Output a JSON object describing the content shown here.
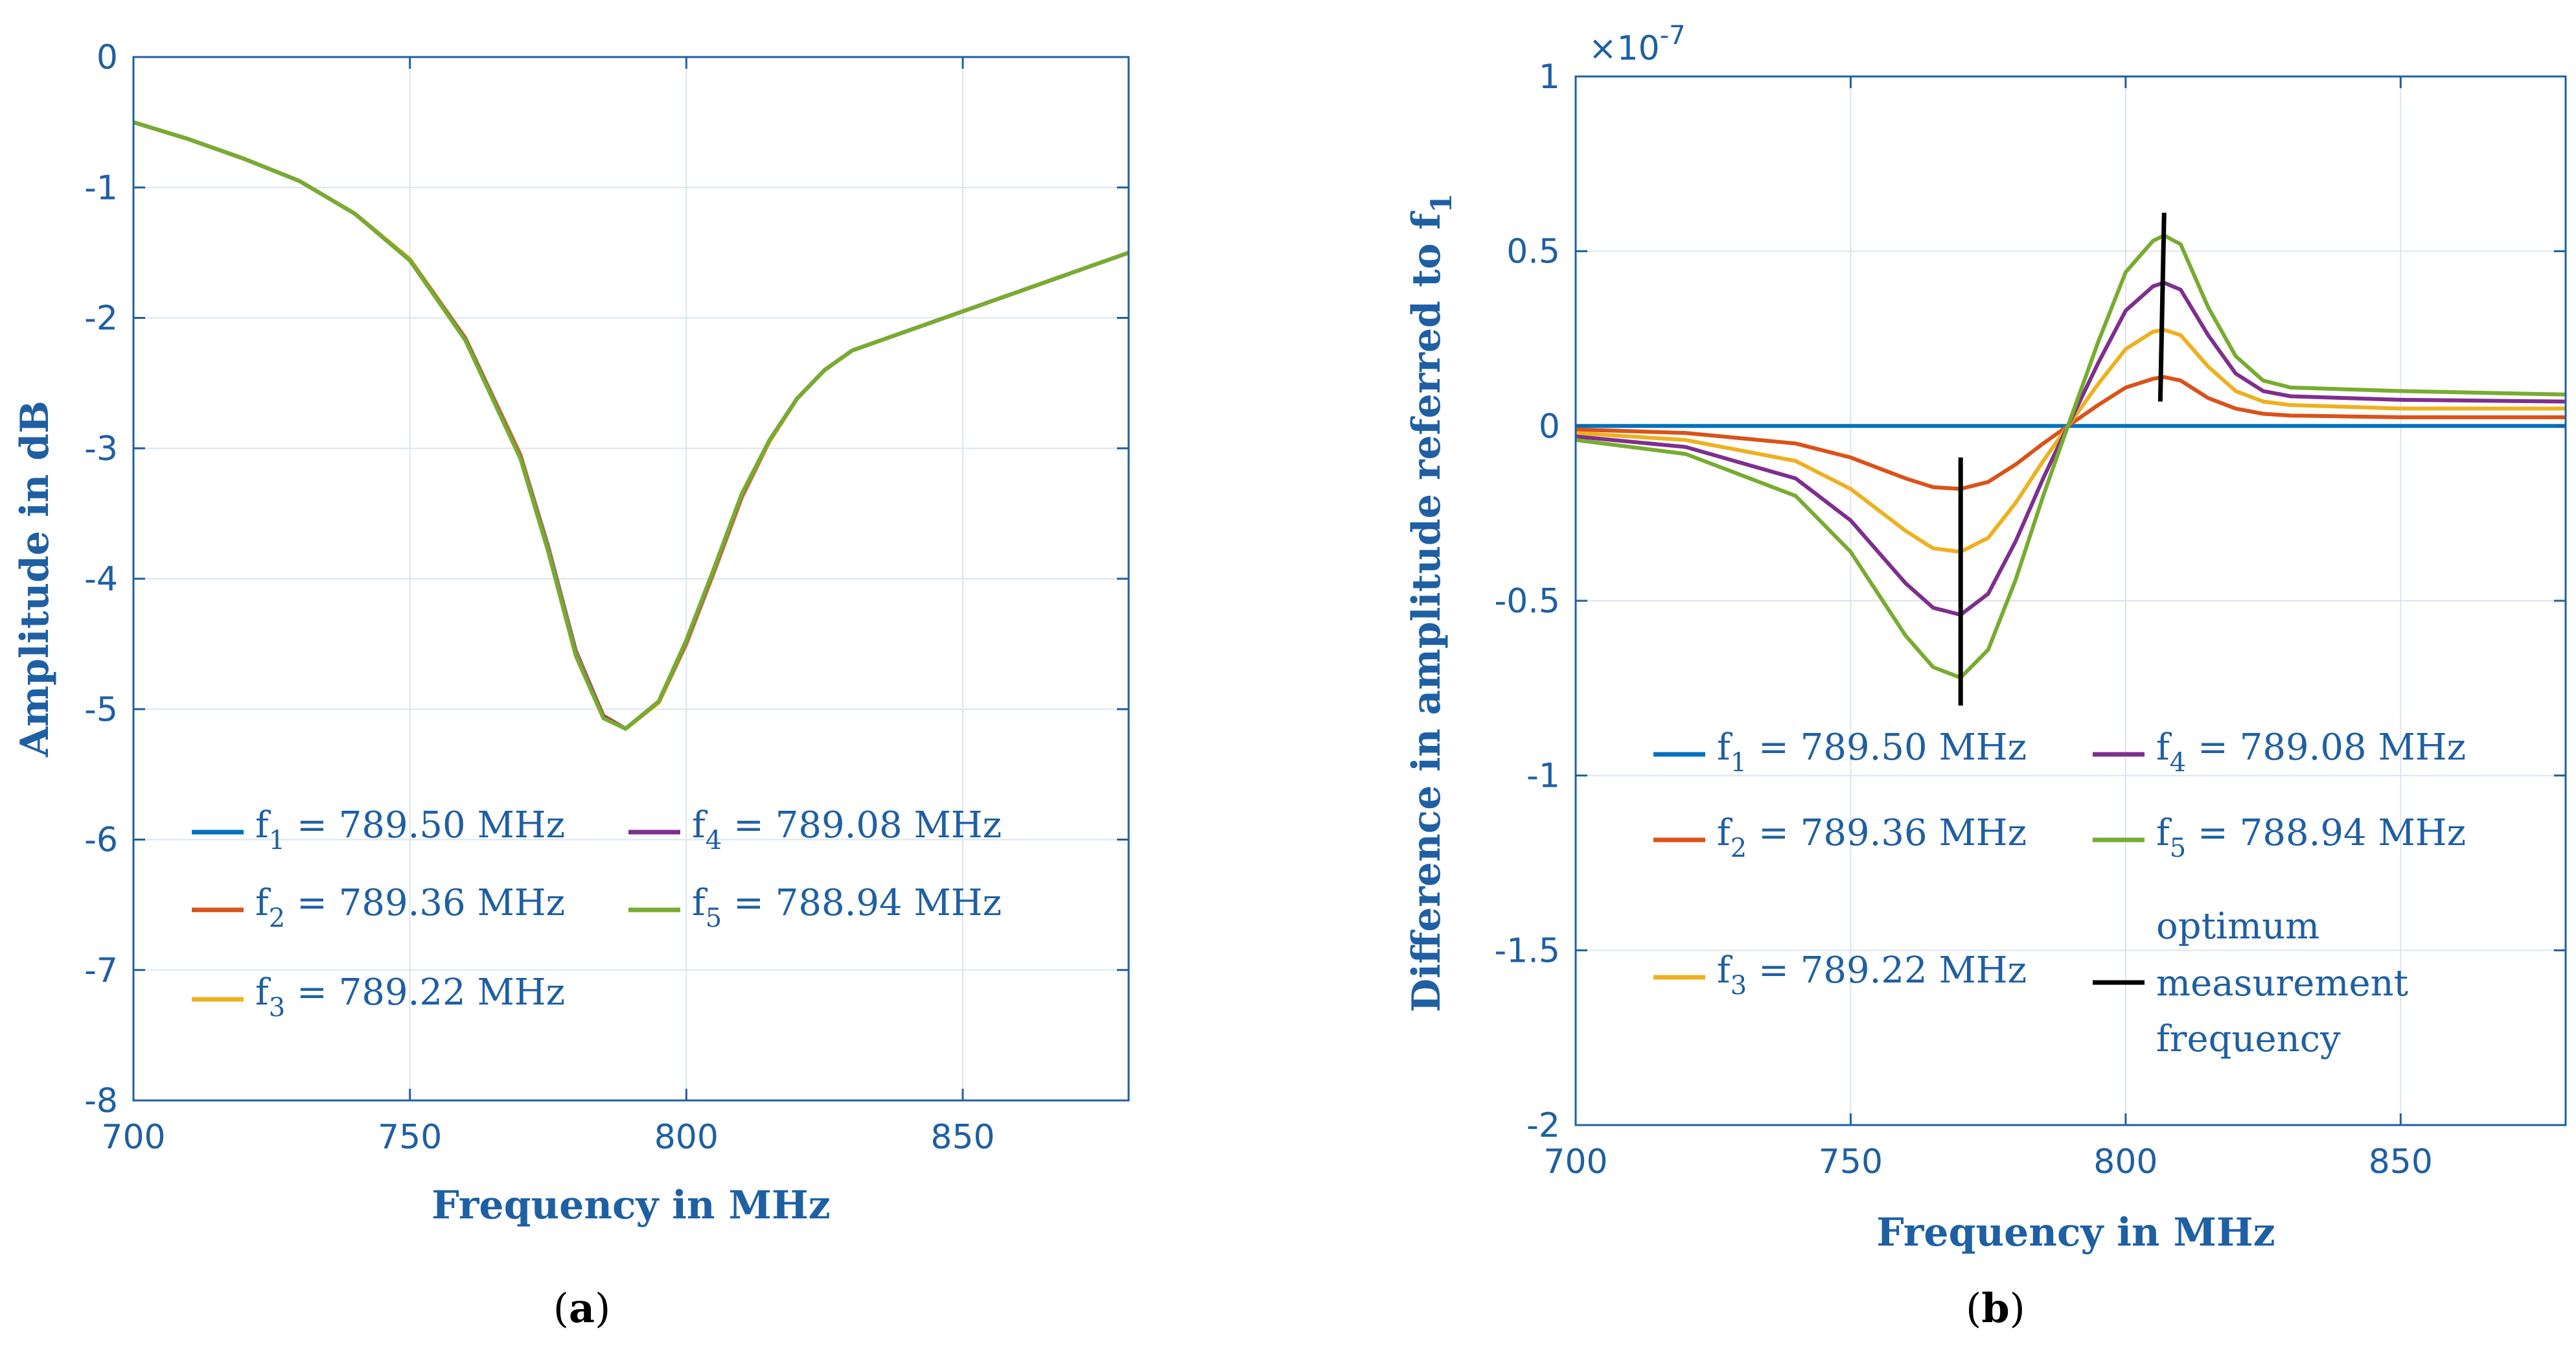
{
  "chart_data": [
    {
      "id": "a",
      "type": "line",
      "panel_label": "a",
      "xlabel": "Frequency in MHz",
      "ylabel": "Amplitude in dB",
      "xlim": [
        700,
        880
      ],
      "ylim": [
        -8,
        0
      ],
      "xticks": [
        "700",
        "750",
        "800",
        "850"
      ],
      "yticks": [
        "0",
        "-1",
        "-2",
        "-3",
        "-4",
        "-5",
        "-6",
        "-7",
        "-8"
      ],
      "grid": true,
      "legend_position": "bottom-center",
      "x": [
        700,
        710,
        720,
        730,
        740,
        750,
        760,
        770,
        775,
        780,
        785,
        789,
        795,
        800,
        805,
        810,
        815,
        820,
        825,
        830,
        840,
        850,
        860,
        870,
        880
      ],
      "series": [
        {
          "name": "f1",
          "label_base": "f",
          "label_sub": "1",
          "label_rest": " = 789.50 MHz",
          "color": "#0072BD",
          "values": [
            -0.5,
            -0.63,
            -0.78,
            -0.95,
            -1.2,
            -1.55,
            -2.15,
            -3.05,
            -3.75,
            -4.55,
            -5.05,
            -5.15,
            -4.95,
            -4.5,
            -3.95,
            -3.38,
            -2.95,
            -2.62,
            -2.4,
            -2.25,
            -2.1,
            -1.95,
            -1.8,
            -1.65,
            -1.5
          ]
        },
        {
          "name": "f2",
          "label_base": "f",
          "label_sub": "2",
          "label_rest": " = 789.36 MHz",
          "color": "#D95319",
          "values": [
            -0.5,
            -0.63,
            -0.78,
            -0.95,
            -1.2,
            -1.55,
            -2.15,
            -3.05,
            -3.76,
            -4.56,
            -5.05,
            -5.15,
            -4.95,
            -4.5,
            -3.95,
            -3.38,
            -2.95,
            -2.62,
            -2.4,
            -2.25,
            -2.1,
            -1.95,
            -1.8,
            -1.65,
            -1.5
          ]
        },
        {
          "name": "f3",
          "label_base": "f",
          "label_sub": "3",
          "label_rest": " = 789.22 MHz",
          "color": "#EDB120",
          "values": [
            -0.5,
            -0.63,
            -0.78,
            -0.95,
            -1.2,
            -1.55,
            -2.15,
            -3.06,
            -3.77,
            -4.57,
            -5.06,
            -5.15,
            -4.95,
            -4.49,
            -3.94,
            -3.37,
            -2.95,
            -2.62,
            -2.4,
            -2.25,
            -2.1,
            -1.95,
            -1.8,
            -1.65,
            -1.5
          ]
        },
        {
          "name": "f4",
          "label_base": "f",
          "label_sub": "4",
          "label_rest": " = 789.08 MHz",
          "color": "#7E2F8E",
          "values": [
            -0.5,
            -0.63,
            -0.78,
            -0.95,
            -1.2,
            -1.56,
            -2.16,
            -3.07,
            -3.78,
            -4.58,
            -5.06,
            -5.15,
            -4.94,
            -4.48,
            -3.93,
            -3.36,
            -2.94,
            -2.62,
            -2.4,
            -2.25,
            -2.1,
            -1.95,
            -1.8,
            -1.65,
            -1.5
          ]
        },
        {
          "name": "f5",
          "label_base": "f",
          "label_sub": "5",
          "label_rest": " = 788.94 MHz",
          "color": "#77AC30",
          "values": [
            -0.5,
            -0.63,
            -0.78,
            -0.95,
            -1.2,
            -1.56,
            -2.17,
            -3.08,
            -3.79,
            -4.59,
            -5.07,
            -5.15,
            -4.94,
            -4.47,
            -3.92,
            -3.35,
            -2.94,
            -2.62,
            -2.4,
            -2.25,
            -2.1,
            -1.95,
            -1.8,
            -1.65,
            -1.5
          ]
        }
      ]
    },
    {
      "id": "b",
      "type": "line",
      "panel_label": "b",
      "xlabel": "Frequency in MHz",
      "ylabel_main": "Difference in amplitude referred to f",
      "ylabel_sub": "1",
      "y_exponent_base": "×10",
      "y_exponent_power": "-7",
      "xlim": [
        700,
        880
      ],
      "ylim": [
        -2,
        1
      ],
      "xticks": [
        "700",
        "750",
        "800",
        "850"
      ],
      "yticks": [
        "1",
        "0.5",
        "0",
        "-0.5",
        "-1",
        "-1.5",
        "-2"
      ],
      "grid": true,
      "legend_position": "lower-center",
      "x": [
        700,
        720,
        740,
        750,
        760,
        765,
        770,
        775,
        780,
        785,
        789.5,
        795,
        800,
        805,
        807,
        810,
        815,
        820,
        825,
        830,
        850,
        880
      ],
      "series": [
        {
          "name": "f1",
          "label_base": "f",
          "label_sub": "1",
          "label_rest": " = 789.50 MHz",
          "color": "#0072BD",
          "values": [
            0,
            0,
            0,
            0,
            0,
            0,
            0,
            0,
            0,
            0,
            0,
            0,
            0,
            0,
            0,
            0,
            0,
            0,
            0,
            0,
            0,
            0
          ]
        },
        {
          "name": "f2",
          "label_base": "f",
          "label_sub": "2",
          "label_rest": " = 789.36 MHz",
          "color": "#D95319",
          "values": [
            -0.01,
            -0.02,
            -0.05,
            -0.09,
            -0.15,
            -0.175,
            -0.18,
            -0.16,
            -0.11,
            -0.05,
            0,
            0.06,
            0.11,
            0.135,
            0.14,
            0.13,
            0.08,
            0.05,
            0.035,
            0.03,
            0.025,
            0.025
          ]
        },
        {
          "name": "f3",
          "label_base": "f",
          "label_sub": "3",
          "label_rest": " = 789.22 MHz",
          "color": "#EDB120",
          "values": [
            -0.02,
            -0.04,
            -0.1,
            -0.18,
            -0.3,
            -0.35,
            -0.36,
            -0.32,
            -0.22,
            -0.1,
            0,
            0.12,
            0.22,
            0.27,
            0.275,
            0.26,
            0.17,
            0.1,
            0.07,
            0.06,
            0.05,
            0.05
          ]
        },
        {
          "name": "f4",
          "label_base": "f",
          "label_sub": "4",
          "label_rest": " = 789.08 MHz",
          "color": "#7E2F8E",
          "values": [
            -0.03,
            -0.06,
            -0.15,
            -0.27,
            -0.45,
            -0.52,
            -0.54,
            -0.48,
            -0.33,
            -0.15,
            0,
            0.18,
            0.33,
            0.4,
            0.41,
            0.39,
            0.26,
            0.15,
            0.1,
            0.085,
            0.075,
            0.07
          ]
        },
        {
          "name": "f5",
          "label_base": "f",
          "label_sub": "5",
          "label_rest": " = 788.94 MHz",
          "color": "#77AC30",
          "values": [
            -0.04,
            -0.08,
            -0.2,
            -0.36,
            -0.6,
            -0.69,
            -0.72,
            -0.64,
            -0.44,
            -0.2,
            0,
            0.24,
            0.44,
            0.53,
            0.545,
            0.52,
            0.34,
            0.2,
            0.13,
            0.11,
            0.1,
            0.09
          ]
        }
      ],
      "optimum": {
        "label_lines": [
          "optimum",
          "measurement",
          "frequency"
        ],
        "color": "#000000",
        "markers": [
          {
            "x1": 770,
            "y1": -0.09,
            "x2": 770,
            "y2": -0.8
          },
          {
            "x1": 807,
            "y1": 0.61,
            "x2": 806.3,
            "y2": 0.07
          }
        ]
      }
    }
  ],
  "captions": {
    "a": {
      "open": "(",
      "letter": "a",
      "close": ")"
    },
    "b": {
      "open": "(",
      "letter": "b",
      "close": ")"
    }
  }
}
